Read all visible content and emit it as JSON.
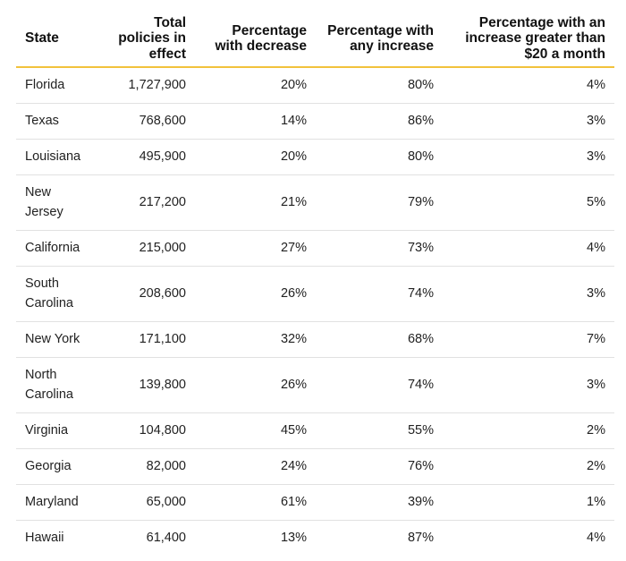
{
  "table": {
    "headers": {
      "state": "State",
      "total": "Total policies in effect",
      "decrease": "Percentage with decrease",
      "any_increase": "Percentage with any increase",
      "increase_20": "Percentage with an increase greater than $20 a month"
    },
    "rows": [
      {
        "state": "Florida",
        "total": "1,727,900",
        "decrease": "20%",
        "any_increase": "80%",
        "increase_20": "4%"
      },
      {
        "state": "Texas",
        "total": "768,600",
        "decrease": "14%",
        "any_increase": "86%",
        "increase_20": "3%"
      },
      {
        "state": "Louisiana",
        "total": "495,900",
        "decrease": "20%",
        "any_increase": "80%",
        "increase_20": "3%"
      },
      {
        "state": "New Jersey",
        "total": "217,200",
        "decrease": "21%",
        "any_increase": "79%",
        "increase_20": "5%"
      },
      {
        "state": "California",
        "total": "215,000",
        "decrease": "27%",
        "any_increase": "73%",
        "increase_20": "4%"
      },
      {
        "state": "South Carolina",
        "total": "208,600",
        "decrease": "26%",
        "any_increase": "74%",
        "increase_20": "3%"
      },
      {
        "state": "New York",
        "total": "171,100",
        "decrease": "32%",
        "any_increase": "68%",
        "increase_20": "7%"
      },
      {
        "state": "North Carolina",
        "total": "139,800",
        "decrease": "26%",
        "any_increase": "74%",
        "increase_20": "3%"
      },
      {
        "state": "Virginia",
        "total": "104,800",
        "decrease": "45%",
        "any_increase": "55%",
        "increase_20": "2%"
      },
      {
        "state": "Georgia",
        "total": "82,000",
        "decrease": "24%",
        "any_increase": "76%",
        "increase_20": "2%"
      },
      {
        "state": "Maryland",
        "total": "65,000",
        "decrease": "61%",
        "any_increase": "39%",
        "increase_20": "1%"
      },
      {
        "state": "Hawaii",
        "total": "61,400",
        "decrease": "13%",
        "any_increase": "87%",
        "increase_20": "4%"
      }
    ]
  },
  "colors": {
    "header_rule": "#f2c23c",
    "row_rule": "#e1e1e1",
    "text": "#222222"
  }
}
